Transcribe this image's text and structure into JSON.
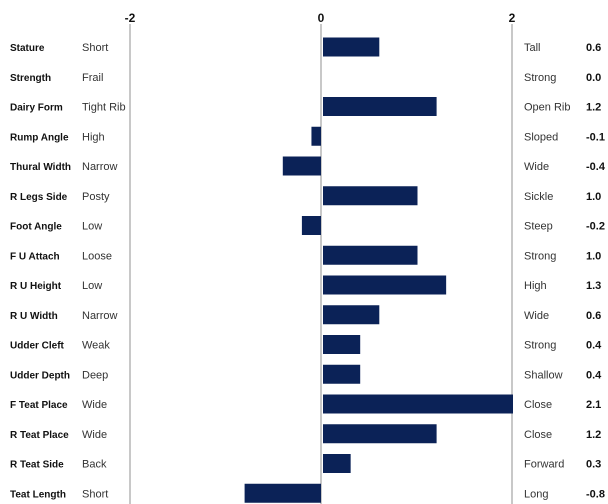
{
  "colors": {
    "bar": "#0b2257",
    "axis": "#c8c8c8"
  },
  "chart_data": {
    "type": "bar",
    "orientation": "horizontal",
    "xlim": [
      -2,
      2
    ],
    "x_ticks": [
      "-2",
      "0",
      "2"
    ],
    "grid": false,
    "traits": [
      {
        "name": "Stature",
        "low": "Short",
        "high": "Tall",
        "value": 0.6,
        "label": "0.6"
      },
      {
        "name": "Strength",
        "low": "Frail",
        "high": "Strong",
        "value": 0.0,
        "label": "0.0"
      },
      {
        "name": "Dairy Form",
        "low": "Tight Rib",
        "high": "Open Rib",
        "value": 1.2,
        "label": "1.2"
      },
      {
        "name": "Rump Angle",
        "low": "High",
        "high": "Sloped",
        "value": -0.1,
        "label": "-0.1"
      },
      {
        "name": "Thural Width",
        "low": "Narrow",
        "high": "Wide",
        "value": -0.4,
        "label": "-0.4"
      },
      {
        "name": "R Legs Side",
        "low": "Posty",
        "high": "Sickle",
        "value": 1.0,
        "label": "1.0"
      },
      {
        "name": "Foot Angle",
        "low": "Low",
        "high": "Steep",
        "value": -0.2,
        "label": "-0.2"
      },
      {
        "name": "F U Attach",
        "low": "Loose",
        "high": "Strong",
        "value": 1.0,
        "label": "1.0"
      },
      {
        "name": "R U Height",
        "low": "Low",
        "high": "High",
        "value": 1.3,
        "label": "1.3"
      },
      {
        "name": "R U Width",
        "low": "Narrow",
        "high": "Wide",
        "value": 0.6,
        "label": "0.6"
      },
      {
        "name": "Udder Cleft",
        "low": "Weak",
        "high": "Strong",
        "value": 0.4,
        "label": "0.4"
      },
      {
        "name": "Udder Depth",
        "low": "Deep",
        "high": "Shallow",
        "value": 0.4,
        "label": "0.4"
      },
      {
        "name": "F Teat Place",
        "low": "Wide",
        "high": "Close",
        "value": 2.1,
        "label": "2.1"
      },
      {
        "name": "R Teat Place",
        "low": "Wide",
        "high": "Close",
        "value": 1.2,
        "label": "1.2"
      },
      {
        "name": "R Teat Side",
        "low": "Back",
        "high": "Forward",
        "value": 0.3,
        "label": "0.3"
      },
      {
        "name": "Teat Length",
        "low": "Short",
        "high": "Long",
        "value": -0.8,
        "label": "-0.8"
      }
    ]
  }
}
